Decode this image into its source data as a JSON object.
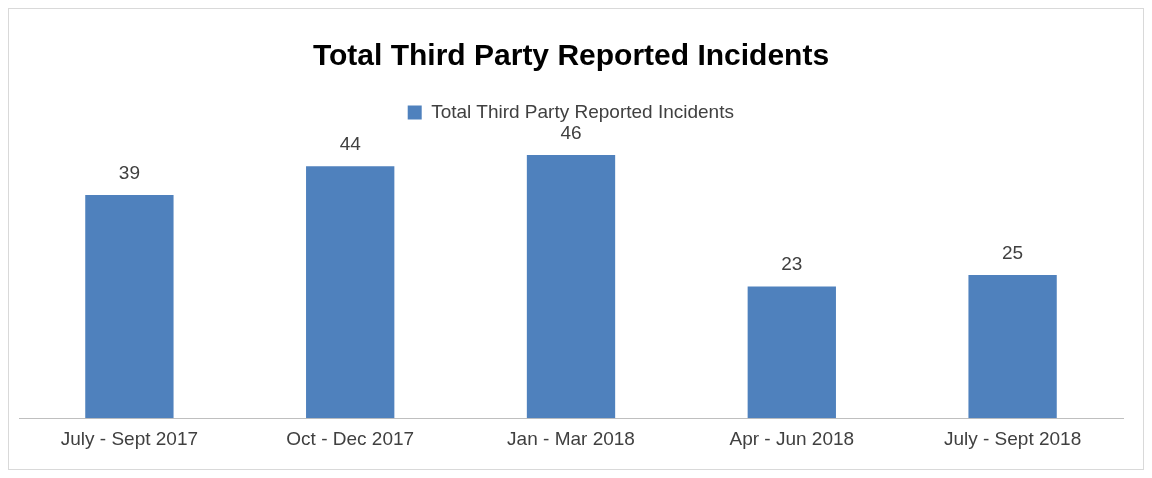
{
  "chart_data": {
    "type": "bar",
    "title": "Total Third Party Reported Incidents",
    "categories": [
      "July - Sept 2017",
      "Oct - Dec 2017",
      "Jan - Mar 2018",
      "Apr - Jun 2018",
      "July - Sept 2018"
    ],
    "series": [
      {
        "name": "Total Third Party Reported Incidents",
        "color": "#4f81bd",
        "values": [
          39,
          44,
          46,
          23,
          25
        ]
      }
    ],
    "data_labels": true,
    "legend": "top",
    "grid": false
  }
}
